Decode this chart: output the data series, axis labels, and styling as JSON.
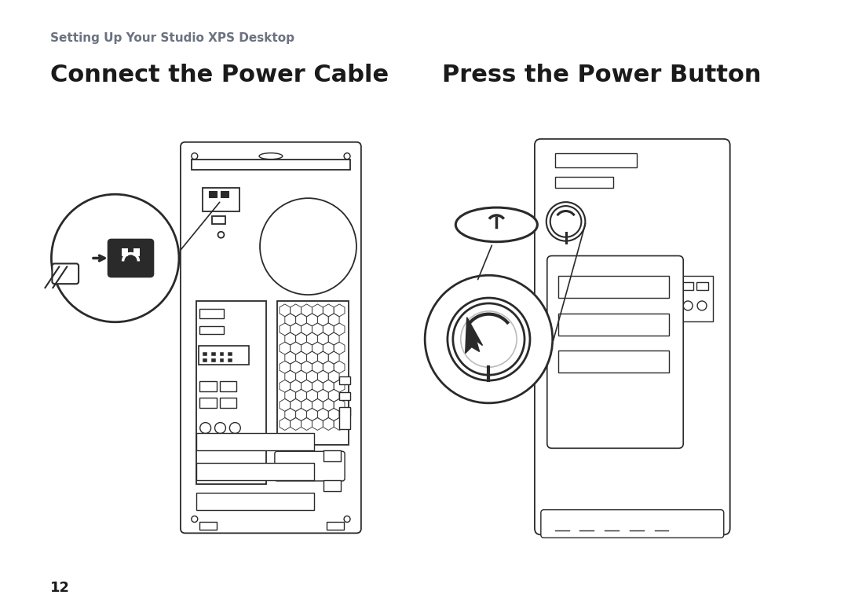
{
  "subtitle": "Setting Up Your Studio XPS Desktop",
  "title_left": "Connect the Power Cable",
  "title_right": "Press the Power Button",
  "page_number": "12",
  "subtitle_color": "#6b7280",
  "title_color": "#1a1a1a",
  "background_color": "#ffffff",
  "subtitle_fontsize": 11,
  "title_fontsize": 22,
  "page_number_fontsize": 13
}
